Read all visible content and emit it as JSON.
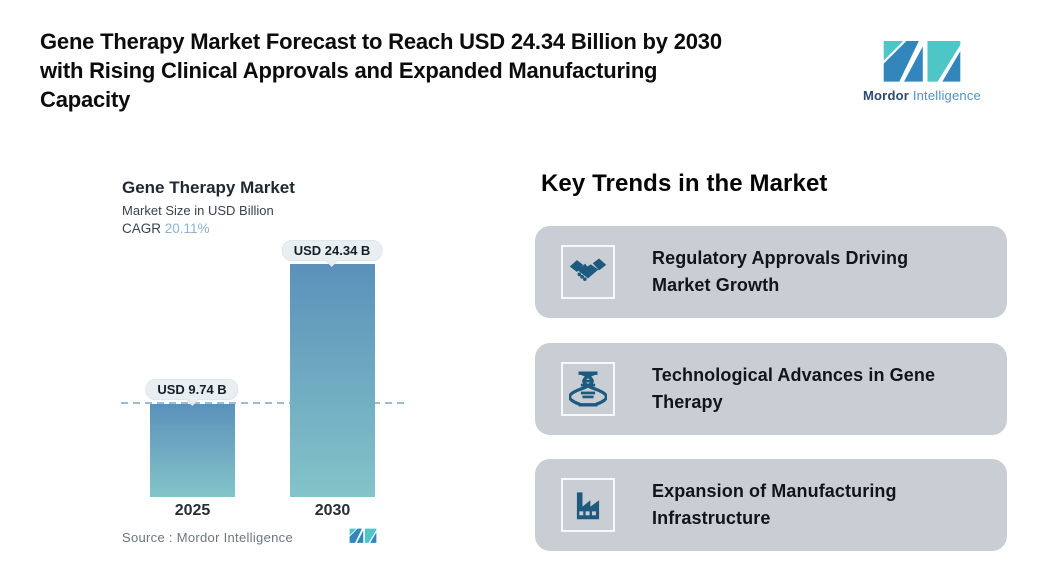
{
  "header": {
    "title_lines": [
      "Gene Therapy Market Forecast to Reach USD 24.34 Billion by 2030",
      "with Rising Clinical Approvals and Expanded Manufacturing",
      "Capacity"
    ]
  },
  "brand": {
    "name_primary": "Mordor",
    "name_secondary": "Intelligence",
    "logo_icon": "mordor-intelligence-logo",
    "colors": {
      "blue": "#3286bb",
      "teal": "#4ec5c6"
    }
  },
  "chart": {
    "title": "Gene Therapy Market",
    "subtitle": "Market Size in USD Billion",
    "cagr_label": "CAGR",
    "cagr_value": "20.11%",
    "source": "Source :  Mordor Intelligence",
    "colors": {
      "bar_top": "#5b91ba",
      "bar_bottom": "#83c4c9",
      "dashed_line": "#9dbbd4",
      "label_pill_bg": "#e9eef1",
      "cagr_value_color": "#8cb2d3"
    }
  },
  "chart_data": {
    "type": "bar",
    "title": "Gene Therapy Market",
    "ylabel": "Market Size in USD Billion",
    "cagr": "20.11%",
    "categories": [
      "2025",
      "2030"
    ],
    "values": [
      9.74,
      24.34
    ],
    "value_labels": [
      "USD 9.74 B",
      "USD 24.34 B"
    ],
    "reference_line_value": 9.74,
    "grid": false,
    "legend": false,
    "source": "Source :  Mordor Intelligence"
  },
  "key_trends": {
    "heading": "Key Trends in the Market",
    "card_bg": "#c9cdd4",
    "icon_color": "#1d5a7e",
    "cards": [
      {
        "icon": "handshake-icon",
        "title_lines": [
          "Regulatory Approvals Driving",
          "Market Growth"
        ]
      },
      {
        "icon": "dna-icon",
        "title_lines": [
          "Technological Advances in Gene",
          "Therapy"
        ]
      },
      {
        "icon": "factory-icon",
        "title_lines": [
          "Expansion of Manufacturing",
          "Infrastructure"
        ]
      }
    ]
  }
}
